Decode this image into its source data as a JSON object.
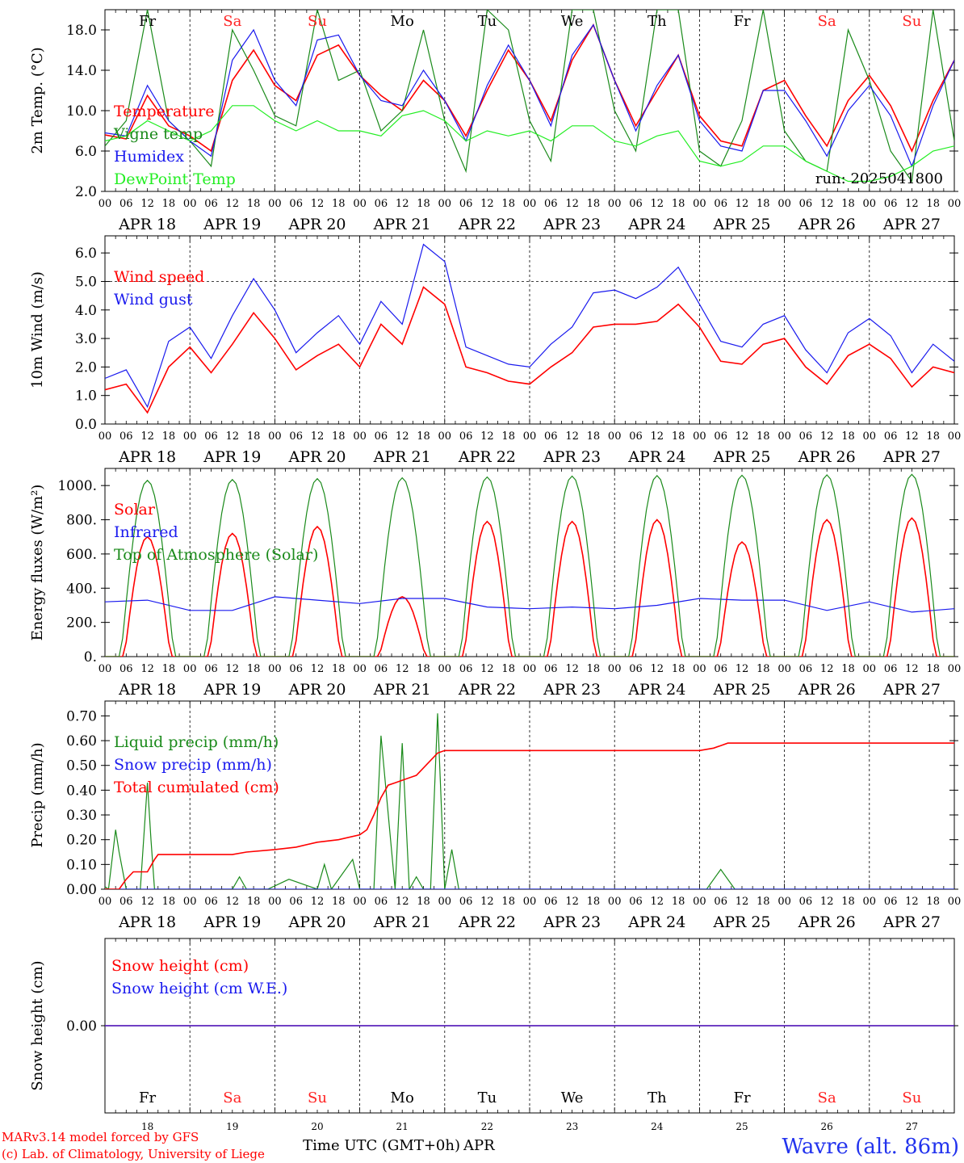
{
  "colors": {
    "red": "#ff0000",
    "dark_green": "#1a8a1a",
    "light_green": "#22ee22",
    "blue": "#1a1aee",
    "title_blue": "#2233ee",
    "weekend": "#ff2222",
    "text": "#000000"
  },
  "run_label": "run: 2025041800",
  "footer": {
    "credit_line1": "MARv3.14 model forced by GFS",
    "credit_line2": "(c) Lab. of Climatology, University of Liege",
    "x_title": "Time UTC (GMT+0h)",
    "month": "APR",
    "station": "Wavre (alt. 86m)"
  },
  "time_axis": {
    "hour_labels": [
      "00",
      "06",
      "12",
      "18"
    ],
    "end_label": "00",
    "date_labels": [
      "APR 18",
      "APR 19",
      "APR 20",
      "APR 21",
      "APR 22",
      "APR 23",
      "APR 24",
      "APR 25",
      "APR 26",
      "APR 27"
    ],
    "day_numbers": [
      "18",
      "19",
      "20",
      "21",
      "22",
      "23",
      "24",
      "25",
      "26",
      "27"
    ],
    "weekdays": [
      "Fr",
      "Sa",
      "Su",
      "Mo",
      "Tu",
      "We",
      "Th",
      "Fr",
      "Sa",
      "Su"
    ],
    "weekend_days": [
      1,
      2,
      8,
      9
    ]
  },
  "chart_data": [
    {
      "type": "line",
      "name": "temperature-panel",
      "ylabel": "2m Temp. (°C)",
      "ylim": [
        2,
        20
      ],
      "yticks": [
        2,
        6,
        10,
        14,
        18
      ],
      "ytick_labels": [
        "2.0",
        "6.0",
        "10.0",
        "14.0",
        "18.0"
      ],
      "x_unit": "hours since APR 18 00 UTC",
      "series": [
        {
          "name": "Temperature",
          "color_key": "red",
          "x": [
            0,
            6,
            12,
            18,
            24,
            30,
            36,
            42,
            48,
            54,
            60,
            66,
            72,
            78,
            84,
            90,
            96,
            102,
            108,
            114,
            120,
            126,
            132,
            138,
            144,
            150,
            156,
            162,
            168,
            174,
            180,
            186,
            192,
            198,
            204,
            210,
            216,
            222,
            228,
            234,
            240
          ],
          "y": [
            7.6,
            7.2,
            11.5,
            8.5,
            7.5,
            6.0,
            13.0,
            16.0,
            12.5,
            11.0,
            15.5,
            16.5,
            13.5,
            11.5,
            10.0,
            13.0,
            11.0,
            7.5,
            12.0,
            16.0,
            13.0,
            9.0,
            15.0,
            18.5,
            13.0,
            8.5,
            12.0,
            15.5,
            9.5,
            7.0,
            6.5,
            12.0,
            13.0,
            9.5,
            6.5,
            11.0,
            13.5,
            10.5,
            6.0,
            11.0,
            15.0
          ]
        },
        {
          "name": "Vigne temp",
          "color_key": "dark_green",
          "x": [
            0,
            6,
            12,
            18,
            24,
            30,
            36,
            42,
            48,
            54,
            60,
            66,
            72,
            78,
            84,
            90,
            96,
            102,
            108,
            114,
            120,
            126,
            132,
            138,
            144,
            150,
            156,
            162,
            168,
            174,
            180,
            186,
            192,
            198,
            204,
            210,
            216,
            222,
            228,
            234,
            240
          ],
          "y": [
            6.5,
            9.0,
            20.0,
            9.0,
            7.0,
            4.5,
            18.0,
            14.0,
            9.5,
            8.5,
            20.0,
            13.0,
            14.0,
            8.0,
            10.0,
            18.0,
            9.0,
            4.0,
            20.0,
            18.0,
            9.0,
            5.0,
            20.0,
            20.0,
            10.0,
            6.0,
            20.0,
            20.0,
            6.0,
            4.5,
            9.0,
            20.0,
            8.0,
            5.0,
            4.0,
            18.0,
            13.0,
            6.0,
            3.0,
            20.0,
            7.0
          ]
        },
        {
          "name": "Humidex",
          "color_key": "blue",
          "x": [
            0,
            6,
            12,
            18,
            24,
            30,
            36,
            42,
            48,
            54,
            60,
            66,
            72,
            78,
            84,
            90,
            96,
            102,
            108,
            114,
            120,
            126,
            132,
            138,
            144,
            150,
            156,
            162,
            168,
            174,
            180,
            186,
            192,
            198,
            204,
            210,
            216,
            222,
            228,
            234,
            240
          ],
          "y": [
            7.8,
            7.5,
            12.5,
            9.0,
            7.0,
            5.5,
            15.0,
            18.0,
            13.0,
            10.5,
            17.0,
            17.5,
            13.5,
            11.0,
            10.5,
            14.0,
            11.0,
            7.0,
            12.5,
            16.5,
            13.0,
            8.5,
            15.5,
            18.5,
            13.0,
            8.0,
            12.5,
            15.5,
            9.0,
            6.5,
            6.0,
            12.0,
            12.0,
            9.0,
            5.5,
            10.0,
            12.5,
            9.5,
            4.5,
            10.5,
            15.0
          ]
        },
        {
          "name": "DewPoint Temp",
          "color_key": "light_green",
          "x": [
            0,
            6,
            12,
            18,
            24,
            30,
            36,
            42,
            48,
            54,
            60,
            66,
            72,
            78,
            84,
            90,
            96,
            102,
            108,
            114,
            120,
            126,
            132,
            138,
            144,
            150,
            156,
            162,
            168,
            174,
            180,
            186,
            192,
            198,
            204,
            210,
            216,
            222,
            228,
            234,
            240
          ],
          "y": [
            7.0,
            7.5,
            9.0,
            8.0,
            7.0,
            8.0,
            10.5,
            10.5,
            9.0,
            8.0,
            9.0,
            8.0,
            8.0,
            7.5,
            9.5,
            10.0,
            9.0,
            7.0,
            8.0,
            7.5,
            8.0,
            7.0,
            8.5,
            8.5,
            7.0,
            6.5,
            7.5,
            8.0,
            5.0,
            4.5,
            5.0,
            6.5,
            6.5,
            5.0,
            4.0,
            3.0,
            3.0,
            3.5,
            4.5,
            6.0,
            6.5
          ]
        }
      ]
    },
    {
      "type": "line",
      "name": "wind-panel",
      "ylabel": "10m Wind (m/s)",
      "ylim": [
        0,
        6.6
      ],
      "yticks": [
        0,
        1,
        2,
        3,
        4,
        5,
        6
      ],
      "ytick_labels": [
        "0.0",
        "1.0",
        "2.0",
        "3.0",
        "4.0",
        "5.0",
        "6.0"
      ],
      "reference_line": 5.0,
      "series": [
        {
          "name": "Wind speed",
          "color_key": "red",
          "x": [
            0,
            6,
            12,
            18,
            24,
            30,
            36,
            42,
            48,
            54,
            60,
            66,
            72,
            78,
            84,
            90,
            96,
            102,
            108,
            114,
            120,
            126,
            132,
            138,
            144,
            150,
            156,
            162,
            168,
            174,
            180,
            186,
            192,
            198,
            204,
            210,
            216,
            222,
            228,
            234,
            240
          ],
          "y": [
            1.2,
            1.4,
            0.4,
            2.0,
            2.7,
            1.8,
            2.8,
            3.9,
            3.0,
            1.9,
            2.4,
            2.8,
            2.0,
            3.5,
            2.8,
            4.8,
            4.2,
            2.0,
            1.8,
            1.5,
            1.4,
            2.0,
            2.5,
            3.4,
            3.5,
            3.5,
            3.6,
            4.2,
            3.4,
            2.2,
            2.1,
            2.8,
            3.0,
            2.0,
            1.4,
            2.4,
            2.8,
            2.3,
            1.3,
            2.0,
            1.8
          ]
        },
        {
          "name": "Wind gust",
          "color_key": "blue",
          "x": [
            0,
            6,
            12,
            18,
            24,
            30,
            36,
            42,
            48,
            54,
            60,
            66,
            72,
            78,
            84,
            90,
            96,
            102,
            108,
            114,
            120,
            126,
            132,
            138,
            144,
            150,
            156,
            162,
            168,
            174,
            180,
            186,
            192,
            198,
            204,
            210,
            216,
            222,
            228,
            234,
            240
          ],
          "y": [
            1.6,
            1.9,
            0.6,
            2.9,
            3.4,
            2.3,
            3.8,
            5.1,
            4.0,
            2.5,
            3.2,
            3.8,
            2.8,
            4.3,
            3.5,
            6.3,
            5.7,
            2.7,
            2.4,
            2.1,
            2.0,
            2.8,
            3.4,
            4.6,
            4.7,
            4.4,
            4.8,
            5.5,
            4.2,
            2.9,
            2.7,
            3.5,
            3.8,
            2.6,
            1.8,
            3.2,
            3.7,
            3.1,
            1.8,
            2.8,
            2.2
          ]
        }
      ]
    },
    {
      "type": "line",
      "name": "energy-panel",
      "ylabel": "Energy fluxes (W/m²)",
      "ylim": [
        0,
        1100
      ],
      "yticks": [
        0,
        200,
        400,
        600,
        800,
        1000
      ],
      "ytick_labels": [
        "0.",
        "200.",
        "400.",
        "600.",
        "800.",
        "1000."
      ],
      "series": [
        {
          "name": "Solar",
          "color_key": "red",
          "solar_peaks": [
            700,
            720,
            760,
            350,
            790,
            790,
            800,
            670,
            800,
            810
          ]
        },
        {
          "name": "Infrared",
          "color_key": "blue",
          "x": [
            0,
            12,
            24,
            36,
            48,
            60,
            72,
            84,
            96,
            108,
            120,
            132,
            144,
            156,
            168,
            180,
            192,
            204,
            216,
            228,
            240
          ],
          "y": [
            320,
            330,
            270,
            270,
            350,
            330,
            310,
            340,
            340,
            290,
            280,
            290,
            280,
            300,
            340,
            330,
            330,
            270,
            320,
            260,
            280
          ]
        },
        {
          "name": "Top of Atmosphere (Solar)",
          "color_key": "dark_green",
          "toa_peaks": [
            1030,
            1035,
            1040,
            1045,
            1050,
            1055,
            1058,
            1060,
            1062,
            1065
          ]
        }
      ]
    },
    {
      "type": "line",
      "name": "precip-panel",
      "ylabel": "Precip (mm/h)",
      "ylim": [
        0,
        0.76
      ],
      "yticks": [
        0,
        0.1,
        0.2,
        0.3,
        0.4,
        0.5,
        0.6,
        0.7
      ],
      "ytick_labels": [
        "0.00",
        "0.10",
        "0.20",
        "0.30",
        "0.40",
        "0.50",
        "0.60",
        "0.70"
      ],
      "series": [
        {
          "name": "Liquid precip (mm/h)",
          "color_key": "dark_green",
          "x": [
            0,
            1,
            3,
            4,
            6,
            8,
            10,
            12,
            13,
            14,
            16,
            20,
            36,
            38,
            40,
            46,
            52,
            60,
            62,
            64,
            70,
            72,
            76,
            78,
            82,
            84,
            86,
            88,
            90,
            92,
            94,
            96,
            98,
            100,
            102,
            104,
            106,
            110,
            114,
            116,
            120,
            170,
            174,
            178,
            182,
            240
          ],
          "y": [
            0.01,
            0.0,
            0.24,
            0.15,
            0.0,
            0.0,
            0.0,
            0.43,
            0.2,
            0.0,
            0.0,
            0.0,
            0.0,
            0.05,
            0.0,
            0.0,
            0.04,
            0.0,
            0.1,
            0.0,
            0.12,
            0.0,
            0.0,
            0.62,
            0.0,
            0.59,
            0.0,
            0.05,
            0.0,
            0.0,
            0.71,
            0.0,
            0.16,
            0.0,
            0.0,
            0.0,
            0.0,
            0.0,
            0.0,
            0.0,
            0.0,
            0.0,
            0.08,
            0.0,
            0.0,
            0.0
          ]
        },
        {
          "name": "Snow precip (mm/h)",
          "color_key": "blue",
          "x": [
            0,
            240
          ],
          "y": [
            0,
            0
          ]
        },
        {
          "name": "Total cumulated (cm)",
          "color_key": "red",
          "x": [
            0,
            4,
            6,
            8,
            12,
            14,
            15,
            16,
            36,
            40,
            48,
            54,
            60,
            66,
            72,
            74,
            76,
            78,
            80,
            82,
            84,
            88,
            92,
            94,
            96,
            100,
            168,
            172,
            174,
            176,
            240
          ],
          "y": [
            0.0,
            0.0,
            0.04,
            0.07,
            0.07,
            0.12,
            0.14,
            0.14,
            0.14,
            0.15,
            0.16,
            0.17,
            0.19,
            0.2,
            0.22,
            0.24,
            0.3,
            0.37,
            0.42,
            0.43,
            0.44,
            0.46,
            0.52,
            0.55,
            0.56,
            0.56,
            0.56,
            0.57,
            0.58,
            0.59,
            0.59
          ]
        }
      ]
    },
    {
      "type": "line",
      "name": "snow-panel",
      "ylabel": "Snow height (cm)",
      "ylim": [
        -1,
        1
      ],
      "yticks": [
        0
      ],
      "ytick_labels": [
        "0.00"
      ],
      "series": [
        {
          "name": "Snow height (cm)",
          "color_key": "red",
          "x": [
            0,
            240
          ],
          "y": [
            0,
            0
          ]
        },
        {
          "name": "Snow height (cm W.E.)",
          "color_key": "blue",
          "x": [
            0,
            240
          ],
          "y": [
            0,
            0
          ]
        }
      ]
    }
  ]
}
